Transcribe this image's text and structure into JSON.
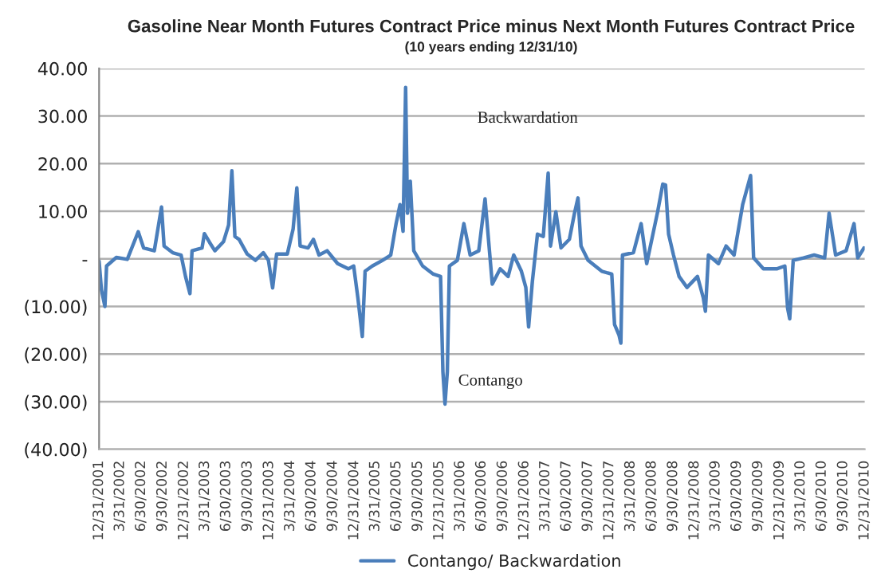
{
  "chart_data": {
    "type": "line",
    "title": "Gasoline Near Month Futures Contract Price minus Next Month Futures Contract Price",
    "subtitle": "(10 years ending 12/31/10)",
    "series": [
      {
        "name": "Contango/ Backwardation",
        "color": "#4a7ebb",
        "x": [
          "2001-12-31",
          "2002-01-10",
          "2002-01-25",
          "2002-02-01",
          "2002-03-15",
          "2002-05-01",
          "2002-06-17",
          "2002-07-10",
          "2002-08-25",
          "2002-09-25",
          "2002-10-06",
          "2002-11-12",
          "2002-12-18",
          "2003-01-06",
          "2003-01-25",
          "2003-02-03",
          "2003-03-18",
          "2003-03-28",
          "2003-04-20",
          "2003-05-12",
          "2003-06-18",
          "2003-07-10",
          "2003-07-24",
          "2003-08-06",
          "2003-08-24",
          "2003-09-28",
          "2003-11-02",
          "2003-12-06",
          "2003-12-28",
          "2004-01-15",
          "2004-02-01",
          "2004-03-18",
          "2004-04-12",
          "2004-04-28",
          "2004-05-12",
          "2004-06-15",
          "2004-07-08",
          "2004-08-01",
          "2004-09-05",
          "2004-10-20",
          "2004-12-05",
          "2004-12-28",
          "2005-01-15",
          "2005-02-03",
          "2005-02-15",
          "2005-03-18",
          "2005-05-01",
          "2005-06-05",
          "2005-06-28",
          "2005-07-15",
          "2005-07-28",
          "2005-08-08",
          "2005-08-16",
          "2005-08-28",
          "2005-09-12",
          "2005-10-20",
          "2005-12-05",
          "2006-01-05",
          "2006-01-15",
          "2006-01-24",
          "2006-02-03",
          "2006-02-12",
          "2006-03-18",
          "2006-04-15",
          "2006-05-12",
          "2006-06-18",
          "2006-07-15",
          "2006-08-15",
          "2006-09-18",
          "2006-10-22",
          "2006-11-15",
          "2006-12-18",
          "2007-01-06",
          "2007-01-18",
          "2007-02-03",
          "2007-02-25",
          "2007-03-22",
          "2007-04-12",
          "2007-04-22",
          "2007-05-15",
          "2007-06-06",
          "2007-07-12",
          "2007-08-03",
          "2007-08-18",
          "2007-08-31",
          "2007-09-30",
          "2007-11-28",
          "2008-01-10",
          "2008-01-22",
          "2008-02-10",
          "2008-02-18",
          "2008-02-25",
          "2008-04-12",
          "2008-05-15",
          "2008-06-08",
          "2008-07-25",
          "2008-08-16",
          "2008-08-28",
          "2008-09-10",
          "2008-10-01",
          "2008-10-25",
          "2008-11-28",
          "2009-01-12",
          "2009-02-06",
          "2009-02-15",
          "2009-02-28",
          "2009-04-12",
          "2009-05-15",
          "2009-06-18",
          "2009-07-25",
          "2009-08-28",
          "2009-09-10",
          "2009-10-22",
          "2009-12-18",
          "2010-01-22",
          "2010-02-03",
          "2010-02-12",
          "2010-02-27",
          "2010-04-12",
          "2010-05-28",
          "2010-07-12",
          "2010-07-31",
          "2010-08-28",
          "2010-10-12",
          "2010-11-15",
          "2010-12-01",
          "2010-12-28"
        ],
        "values": [
          -0.5,
          -6.5,
          -10,
          -1.5,
          0.3,
          -0.1,
          5.7,
          2.3,
          1.7,
          10.9,
          2.7,
          1.3,
          0.8,
          -3.7,
          -7.3,
          1.7,
          2.3,
          5.3,
          3.4,
          1.7,
          3.6,
          7.1,
          18.5,
          4.7,
          4.1,
          1.0,
          -0.3,
          1.3,
          -0.3,
          -6.1,
          1.0,
          1.0,
          6.3,
          14.9,
          2.7,
          2.3,
          4.1,
          0.8,
          1.7,
          -1.0,
          -2.1,
          -1.5,
          -8.2,
          -16.3,
          -2.6,
          -1.5,
          -0.3,
          0.8,
          7.4,
          11.4,
          5.8,
          36,
          9.6,
          16.3,
          1.7,
          -1.5,
          -3.2,
          -3.7,
          -23.7,
          -30.5,
          -23.7,
          -1.5,
          -0.3,
          7.4,
          0.8,
          1.7,
          12.6,
          -5.3,
          -2.1,
          -3.7,
          0.8,
          -2.6,
          -6.0,
          -14.3,
          -4.8,
          5.2,
          4.7,
          18.0,
          2.7,
          9.9,
          2.3,
          4.1,
          9.6,
          12.8,
          2.7,
          -0.3,
          -2.6,
          -3.2,
          -13.8,
          -16.0,
          -17.7,
          0.8,
          1.3,
          7.4,
          -1.0,
          9.9,
          15.7,
          15.5,
          5.2,
          0.8,
          -3.7,
          -6.0,
          -3.7,
          -8.2,
          -11.0,
          0.8,
          -1.0,
          2.7,
          0.8,
          11.4,
          17.5,
          0.2,
          -2.1,
          -2.1,
          -1.5,
          -10.4,
          -12.6,
          -0.3,
          0.2,
          0.8,
          0.2,
          9.6,
          0.8,
          1.7,
          7.4,
          0.2,
          2.3
        ]
      }
    ],
    "xlim": [
      "2001-12-31",
      "2010-12-31"
    ],
    "xticks": [
      {
        "value": "2001-12-31",
        "label": "12/31/2001"
      },
      {
        "value": "2002-03-31",
        "label": "3/31/2002"
      },
      {
        "value": "2002-06-30",
        "label": "6/30/2002"
      },
      {
        "value": "2002-09-30",
        "label": "9/30/2002"
      },
      {
        "value": "2002-12-31",
        "label": "12/31/2002"
      },
      {
        "value": "2003-03-31",
        "label": "3/31/2003"
      },
      {
        "value": "2003-06-30",
        "label": "6/30/2003"
      },
      {
        "value": "2003-09-30",
        "label": "9/30/2003"
      },
      {
        "value": "2003-12-31",
        "label": "12/31/2003"
      },
      {
        "value": "2004-03-31",
        "label": "3/31/2004"
      },
      {
        "value": "2004-06-30",
        "label": "6/30/2004"
      },
      {
        "value": "2004-09-30",
        "label": "9/30/2004"
      },
      {
        "value": "2004-12-31",
        "label": "12/31/2004"
      },
      {
        "value": "2005-03-31",
        "label": "3/31/2005"
      },
      {
        "value": "2005-06-30",
        "label": "6/30/2005"
      },
      {
        "value": "2005-09-30",
        "label": "9/30/2005"
      },
      {
        "value": "2005-12-31",
        "label": "12/31/2005"
      },
      {
        "value": "2006-03-31",
        "label": "3/31/2006"
      },
      {
        "value": "2006-06-30",
        "label": "6/30/2006"
      },
      {
        "value": "2006-09-30",
        "label": "9/30/2006"
      },
      {
        "value": "2006-12-31",
        "label": "12/31/2006"
      },
      {
        "value": "2007-03-31",
        "label": "3/31/2007"
      },
      {
        "value": "2007-06-30",
        "label": "6/30/2007"
      },
      {
        "value": "2007-09-30",
        "label": "9/30/2007"
      },
      {
        "value": "2007-12-31",
        "label": "12/31/2007"
      },
      {
        "value": "2008-03-31",
        "label": "3/31/2008"
      },
      {
        "value": "2008-06-30",
        "label": "6/30/2008"
      },
      {
        "value": "2008-09-30",
        "label": "9/30/2008"
      },
      {
        "value": "2008-12-31",
        "label": "12/31/2008"
      },
      {
        "value": "2009-03-31",
        "label": "3/31/2009"
      },
      {
        "value": "2009-06-30",
        "label": "6/30/2009"
      },
      {
        "value": "2009-09-30",
        "label": "9/30/2009"
      },
      {
        "value": "2009-12-31",
        "label": "12/31/2009"
      },
      {
        "value": "2010-03-31",
        "label": "3/31/2010"
      },
      {
        "value": "2010-06-30",
        "label": "6/30/2010"
      },
      {
        "value": "2010-09-30",
        "label": "9/30/2010"
      },
      {
        "value": "2010-12-31",
        "label": "12/31/2010"
      }
    ],
    "ylim": [
      -40,
      40
    ],
    "yticks": [
      {
        "value": -40,
        "label": "(40.00)"
      },
      {
        "value": -30,
        "label": "(30.00)"
      },
      {
        "value": -20,
        "label": "(20.00)"
      },
      {
        "value": -10,
        "label": "(10.00)"
      },
      {
        "value": 0,
        "label": "-"
      },
      {
        "value": 10,
        "label": "10.00"
      },
      {
        "value": 20,
        "label": "20.00"
      },
      {
        "value": 30,
        "label": "30.00"
      },
      {
        "value": 40,
        "label": "40.00"
      }
    ],
    "annotations": [
      "Backwardation",
      "Contango"
    ],
    "grid": "y",
    "legend": "bottom",
    "marker": "none",
    "line_style": "solid"
  }
}
